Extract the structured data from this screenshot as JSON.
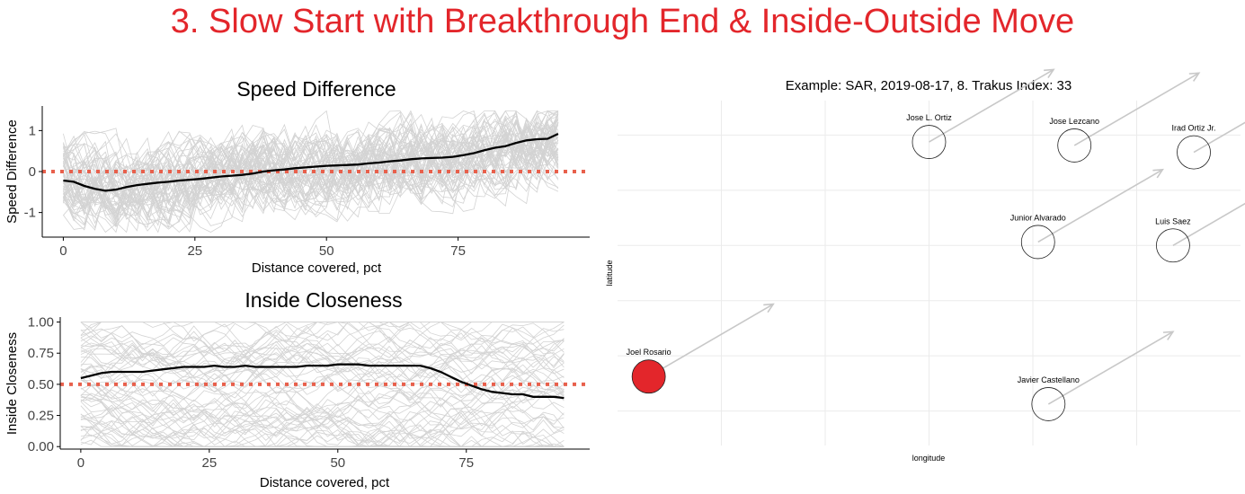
{
  "page": {
    "title": "3. Slow Start with Breakthrough End & Inside-Outside Move",
    "title_color": "#e3262b"
  },
  "colors": {
    "background_lines": "#d3d3d3",
    "mean_line": "#000000",
    "reference_line": "#e8604c",
    "grid": "#ebebeb",
    "arrow": "#c8c8c8",
    "highlight_marker": "#e3262b"
  },
  "chart_data": [
    {
      "type": "line",
      "title": "Speed Difference",
      "xlabel": "Distance covered, pct",
      "ylabel": "Speed Difference",
      "xlim": [
        -4,
        100
      ],
      "ylim": [
        -1.6,
        1.6
      ],
      "xticks": [
        0,
        25,
        50,
        75
      ],
      "yticks": [
        -1,
        0,
        1
      ],
      "x_tick_labels": [
        "0",
        "25",
        "50",
        "75"
      ],
      "y_tick_labels": [
        "-1",
        "0",
        "1"
      ],
      "reference_line_y": 0,
      "background_lines": "many individual horses (light gray), clipped at about ±1.5",
      "series": [
        {
          "x": [
            0,
            2,
            4,
            6,
            8,
            10,
            12,
            14,
            16,
            18,
            20,
            22,
            24,
            26,
            28,
            30,
            32,
            34,
            36,
            38,
            40,
            42,
            44,
            46,
            48,
            50,
            52,
            54,
            56,
            58,
            60,
            62,
            64,
            66,
            68,
            70,
            72,
            74,
            76,
            78,
            80,
            82,
            84,
            86,
            88,
            90,
            92,
            94
          ],
          "y": [
            -0.22,
            -0.25,
            -0.35,
            -0.42,
            -0.47,
            -0.44,
            -0.38,
            -0.33,
            -0.3,
            -0.27,
            -0.25,
            -0.22,
            -0.2,
            -0.18,
            -0.15,
            -0.12,
            -0.1,
            -0.08,
            -0.05,
            0.0,
            0.03,
            0.05,
            0.08,
            0.1,
            0.12,
            0.14,
            0.15,
            0.16,
            0.17,
            0.2,
            0.22,
            0.25,
            0.27,
            0.3,
            0.32,
            0.33,
            0.34,
            0.36,
            0.4,
            0.45,
            0.52,
            0.58,
            0.62,
            0.7,
            0.76,
            0.79,
            0.8,
            0.92
          ]
        }
      ]
    },
    {
      "type": "line",
      "title": "Inside Closeness",
      "xlabel": "Distance covered, pct",
      "ylabel": "Inside Closeness",
      "xlim": [
        -4,
        99
      ],
      "ylim": [
        -0.02,
        1.04
      ],
      "xticks": [
        0,
        25,
        50,
        75
      ],
      "yticks": [
        0,
        0.25,
        0.5,
        0.75,
        1
      ],
      "x_tick_labels": [
        "0",
        "25",
        "50",
        "75"
      ],
      "y_tick_labels": [
        "0.00",
        "0.25",
        "0.50",
        "0.75",
        "1.00"
      ],
      "reference_line_y": 0.5,
      "background_lines": "many individual horses (light gray), bounded 0 to 1",
      "series": [
        {
          "x": [
            0,
            2,
            4,
            6,
            8,
            10,
            12,
            14,
            16,
            18,
            20,
            22,
            24,
            26,
            28,
            30,
            32,
            34,
            36,
            38,
            40,
            42,
            44,
            46,
            48,
            50,
            52,
            54,
            56,
            58,
            60,
            62,
            64,
            66,
            68,
            70,
            72,
            74,
            76,
            78,
            80,
            82,
            84,
            86,
            88,
            90,
            92,
            94
          ],
          "y": [
            0.55,
            0.57,
            0.59,
            0.6,
            0.6,
            0.6,
            0.6,
            0.61,
            0.62,
            0.63,
            0.64,
            0.64,
            0.64,
            0.65,
            0.64,
            0.64,
            0.65,
            0.64,
            0.64,
            0.64,
            0.64,
            0.64,
            0.65,
            0.65,
            0.65,
            0.66,
            0.66,
            0.66,
            0.65,
            0.65,
            0.65,
            0.65,
            0.65,
            0.65,
            0.63,
            0.6,
            0.56,
            0.52,
            0.49,
            0.46,
            0.44,
            0.43,
            0.42,
            0.42,
            0.4,
            0.4,
            0.4,
            0.39
          ]
        }
      ]
    },
    {
      "type": "scatter",
      "title": "Example: SAR, 2019-08-17, 8. Trakus Index: 33",
      "xlabel": "longitude",
      "ylabel": "latitude",
      "grid": true,
      "points": [
        {
          "label": "Jose L. Ortiz",
          "x": 3.0,
          "y": 4.4,
          "highlight": false
        },
        {
          "label": "Jose Lezcano",
          "x": 4.4,
          "y": 4.35,
          "highlight": false
        },
        {
          "label": "Irad Ortiz Jr.",
          "x": 5.55,
          "y": 4.25,
          "highlight": false
        },
        {
          "label": "Junior Alvarado",
          "x": 4.05,
          "y": 2.95,
          "highlight": false
        },
        {
          "label": "Luis Saez",
          "x": 5.35,
          "y": 2.9,
          "highlight": false
        },
        {
          "label": "Joel Rosario",
          "x": 0.3,
          "y": 1.0,
          "highlight": true
        },
        {
          "label": "Javier Castellano",
          "x": 4.15,
          "y": 0.6,
          "highlight": false
        }
      ]
    }
  ]
}
